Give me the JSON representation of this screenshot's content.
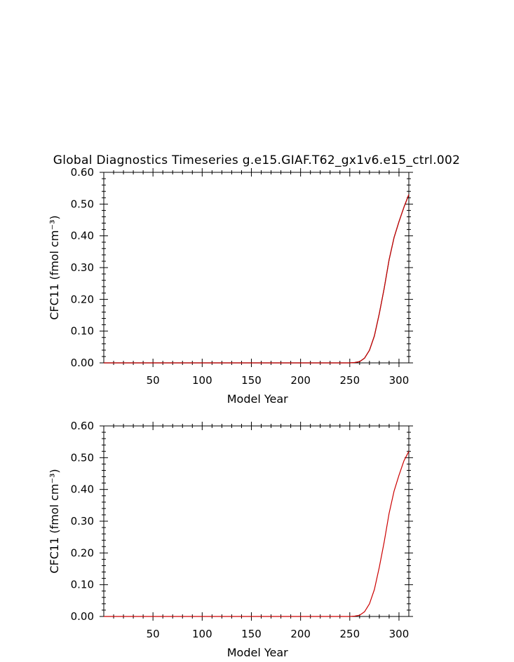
{
  "figure": {
    "title": "Global Diagnostics Timeseries g.e15.GIAF.T62_gx1v6.e15_ctrl.002"
  },
  "chart_data": [
    {
      "type": "line",
      "title": "Global Diagnostics Timeseries g.e15.GIAF.T62_gx1v6.e15_ctrl.002",
      "xlabel": "Model Year",
      "ylabel": "CFC11 (fmol cm⁻³)",
      "xlim": [
        0,
        310
      ],
      "ylim": [
        0,
        0.6
      ],
      "xticks": [
        50,
        100,
        150,
        200,
        250,
        300
      ],
      "xtick_labels": [
        "50",
        "100",
        "150",
        "200",
        "250",
        "300"
      ],
      "yticks": [
        0,
        0.1,
        0.2,
        0.3,
        0.4,
        0.5,
        0.6
      ],
      "ytick_labels": [
        "0.00",
        "0.10",
        "0.20",
        "0.30",
        "0.40",
        "0.50",
        "0.60"
      ],
      "grid": false,
      "series": [
        {
          "color": "#000000",
          "x": [
            0,
            250,
            255,
            260,
            265,
            270,
            275,
            280,
            285,
            290,
            295,
            300,
            305,
            310
          ],
          "y": [
            0,
            0,
            0.001,
            0.004,
            0.015,
            0.04,
            0.085,
            0.155,
            0.235,
            0.325,
            0.395,
            0.445,
            0.49,
            0.53
          ]
        },
        {
          "color": "#cc0000",
          "x": [
            0,
            250,
            255,
            260,
            265,
            270,
            275,
            280,
            285,
            290,
            295,
            300,
            305,
            310
          ],
          "y": [
            0,
            0,
            0.001,
            0.004,
            0.015,
            0.04,
            0.085,
            0.155,
            0.235,
            0.325,
            0.395,
            0.445,
            0.49,
            0.53
          ]
        }
      ]
    },
    {
      "type": "line",
      "xlabel": "Model Year",
      "ylabel": "CFC11 (fmol cm⁻³)",
      "xlim": [
        0,
        310
      ],
      "ylim": [
        0,
        0.6
      ],
      "xticks": [
        50,
        100,
        150,
        200,
        250,
        300
      ],
      "xtick_labels": [
        "50",
        "100",
        "150",
        "200",
        "250",
        "300"
      ],
      "yticks": [
        0,
        0.1,
        0.2,
        0.3,
        0.4,
        0.5,
        0.6
      ],
      "ytick_labels": [
        "0.00",
        "0.10",
        "0.20",
        "0.30",
        "0.40",
        "0.50",
        "0.60"
      ],
      "grid": false,
      "series": [
        {
          "color": "#cc0000",
          "x": [
            0,
            250,
            255,
            260,
            265,
            270,
            275,
            280,
            285,
            290,
            295,
            300,
            305,
            310
          ],
          "y": [
            0,
            0,
            0.001,
            0.004,
            0.015,
            0.04,
            0.085,
            0.155,
            0.235,
            0.325,
            0.395,
            0.445,
            0.49,
            0.52
          ]
        }
      ]
    }
  ]
}
